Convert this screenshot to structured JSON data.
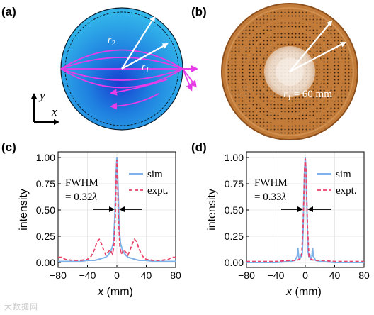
{
  "panels": {
    "a": {
      "label": "(a)",
      "r2_label": "r",
      "r2_sub": "2",
      "r1_label": "r",
      "r1_sub": "1",
      "axis_y": "y",
      "axis_x": "x"
    },
    "b": {
      "label": "(b)",
      "radius_text": "r",
      "radius_sub": "1",
      "radius_value": " = 60 mm"
    }
  },
  "watermark": "大数据网",
  "colors": {
    "sim": "#7fb2e8",
    "expt": "#e8436a",
    "sphere": "#29a9e0",
    "sphere_core": "#1a5bd6",
    "rays": "#e83ce8",
    "sample_base": "#c07a36"
  },
  "chart_data": [
    {
      "panel": "(c)",
      "type": "line",
      "xlabel": "x (mm)",
      "ylabel": "intensity",
      "xlim": [
        -80,
        80
      ],
      "ylim": [
        0,
        1.0
      ],
      "x_ticks": [
        "−80",
        "−40",
        "0",
        "40",
        "80"
      ],
      "y_ticks": [
        "0.00",
        "0.25",
        "0.50",
        "0.75",
        "1.00"
      ],
      "annotation_line1": "FWHM",
      "annotation_line2_prefix": "= 0.32",
      "annotation_symbol": "λ",
      "legend": [
        "sim",
        "expt."
      ],
      "series": [
        {
          "name": "sim",
          "style": "solid",
          "x": [
            -80,
            -70,
            -60,
            -50,
            -40,
            -30,
            -25,
            -20,
            -15,
            -12,
            -9,
            -7,
            -5,
            -4,
            -3,
            -2,
            -1,
            0,
            1,
            2,
            3,
            4,
            5,
            7,
            9,
            12,
            15,
            20,
            25,
            30,
            40,
            50,
            60,
            70,
            80
          ],
          "y": [
            0.01,
            0.01,
            0.01,
            0.01,
            0.02,
            0.02,
            0.03,
            0.04,
            0.05,
            0.07,
            0.1,
            0.13,
            0.18,
            0.25,
            0.4,
            0.62,
            0.86,
            1.0,
            0.86,
            0.62,
            0.4,
            0.25,
            0.18,
            0.13,
            0.1,
            0.07,
            0.05,
            0.04,
            0.03,
            0.02,
            0.02,
            0.01,
            0.01,
            0.01,
            0.01
          ]
        },
        {
          "name": "expt.",
          "style": "dashed",
          "x": [
            -80,
            -75,
            -70,
            -60,
            -50,
            -40,
            -35,
            -30,
            -27,
            -24,
            -21,
            -18,
            -15,
            -12,
            -9,
            -6,
            -4,
            -2,
            -1,
            0,
            1,
            2,
            4,
            6,
            9,
            12,
            15,
            18,
            21,
            24,
            27,
            30,
            35,
            40,
            50,
            60,
            70,
            75,
            80
          ],
          "y": [
            0.05,
            0.05,
            0.03,
            0.02,
            0.02,
            0.03,
            0.06,
            0.13,
            0.2,
            0.22,
            0.18,
            0.12,
            0.07,
            0.1,
            0.12,
            0.08,
            0.15,
            0.45,
            0.8,
            0.98,
            0.8,
            0.45,
            0.15,
            0.08,
            0.12,
            0.1,
            0.07,
            0.12,
            0.18,
            0.22,
            0.2,
            0.13,
            0.06,
            0.03,
            0.02,
            0.02,
            0.03,
            0.05,
            0.05
          ]
        }
      ]
    },
    {
      "panel": "(d)",
      "type": "line",
      "xlabel": "x (mm)",
      "ylabel": "intensity",
      "xlim": [
        -80,
        80
      ],
      "ylim": [
        0,
        1.0
      ],
      "x_ticks": [
        "−80",
        "−40",
        "0",
        "40",
        "80"
      ],
      "y_ticks": [
        "0.00",
        "0.25",
        "0.50",
        "0.75",
        "1.00"
      ],
      "annotation_line1": "FWHM",
      "annotation_line2_prefix": "= 0.33",
      "annotation_symbol": "λ",
      "legend": [
        "sim",
        "expt."
      ],
      "series": [
        {
          "name": "sim",
          "style": "solid",
          "x": [
            -80,
            -60,
            -40,
            -20,
            -14,
            -11,
            -10,
            -9,
            -8,
            -7,
            -6,
            -5,
            -4,
            -3,
            -2,
            -1,
            0,
            1,
            2,
            3,
            4,
            5,
            6,
            7,
            8,
            9,
            10,
            11,
            14,
            20,
            40,
            60,
            80
          ],
          "y": [
            0.0,
            0.0,
            0.0,
            0.01,
            0.02,
            0.06,
            0.14,
            0.06,
            0.02,
            0.04,
            0.08,
            0.05,
            0.1,
            0.3,
            0.6,
            0.88,
            1.0,
            0.88,
            0.6,
            0.3,
            0.1,
            0.05,
            0.08,
            0.04,
            0.02,
            0.06,
            0.14,
            0.06,
            0.02,
            0.01,
            0.0,
            0.0,
            0.0
          ]
        },
        {
          "name": "expt.",
          "style": "dashed",
          "x": [
            -80,
            -60,
            -40,
            -20,
            -12,
            -8,
            -5,
            -3,
            -2,
            -1,
            0,
            1,
            2,
            3,
            5,
            8,
            12,
            20,
            40,
            60,
            80
          ],
          "y": [
            0.01,
            0.01,
            0.01,
            0.02,
            0.02,
            0.03,
            0.06,
            0.35,
            0.6,
            0.9,
            0.99,
            0.9,
            0.6,
            0.35,
            0.06,
            0.03,
            0.02,
            0.02,
            0.01,
            0.01,
            0.01
          ]
        }
      ]
    }
  ]
}
